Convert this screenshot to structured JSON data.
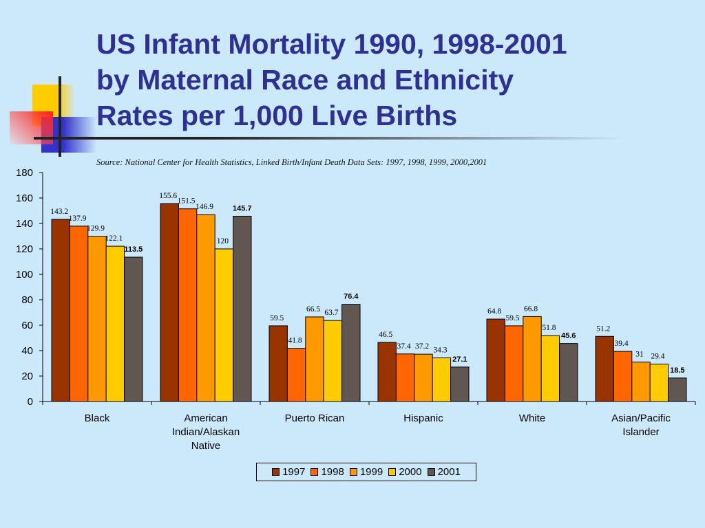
{
  "title": {
    "lines": [
      "US Infant Mortality 1990, 1998-2001",
      "by Maternal Race and Ethnicity",
      "Rates per 1,000 Live Births"
    ]
  },
  "source": "Source:   National Center for Health Statistics, Linked Birth/Infant Death Data Sets: 1997, 1998, 1999, 2000,2001",
  "chart_data": {
    "type": "bar",
    "title": "",
    "xlabel": "",
    "ylabel": "",
    "ylim": [
      0,
      180
    ],
    "yticks": [
      0,
      20,
      40,
      60,
      80,
      100,
      120,
      140,
      160,
      180
    ],
    "grid": false,
    "legend_position": "bottom",
    "categories": [
      "Black",
      "American Indian/Alaskan Native",
      "Puerto Rican",
      "Hispanic",
      "White",
      "Asian/Pacific Islander"
    ],
    "series": [
      {
        "name": "1997",
        "color": "#993300",
        "values": [
          143.2,
          155.6,
          59.5,
          46.5,
          64.8,
          51.2
        ]
      },
      {
        "name": "1998",
        "color": "#ff6600",
        "values": [
          137.9,
          151.5,
          41.8,
          37.4,
          59.5,
          39.4
        ]
      },
      {
        "name": "1999",
        "color": "#ff9900",
        "values": [
          129.9,
          146.9,
          66.5,
          37.2,
          66.8,
          31
        ]
      },
      {
        "name": "2000",
        "color": "#ffcc00",
        "values": [
          122.1,
          120,
          63.7,
          34.3,
          51.8,
          29.4
        ]
      },
      {
        "name": "2001",
        "color": "#5f5750",
        "values": [
          113.5,
          145.7,
          76.4,
          27.1,
          45.6,
          18.5
        ]
      }
    ]
  }
}
